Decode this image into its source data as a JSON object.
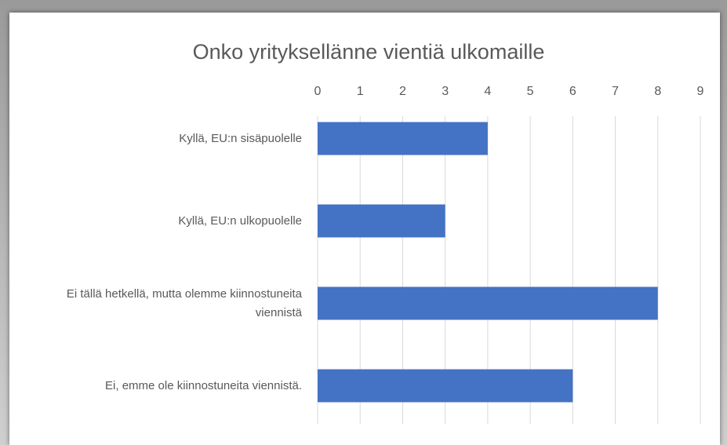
{
  "chart_data": {
    "type": "bar",
    "orientation": "horizontal",
    "title": "Onko yrityksellänne vientiä ulkomaille",
    "categories": [
      "Kyllä, EU:n sisäpuolelle",
      "Kyllä, EU:n ulkopuolelle",
      "Ei tällä hetkellä, mutta olemme kiinnostuneita viennistä",
      "Ei, emme ole kiinnostuneita viennistä."
    ],
    "values": [
      4,
      3,
      8,
      6
    ],
    "color": "#4472c4",
    "xlim": [
      0,
      9
    ],
    "xticks": [
      0,
      1,
      2,
      3,
      4,
      5,
      6,
      7,
      8,
      9
    ],
    "grid": true
  }
}
